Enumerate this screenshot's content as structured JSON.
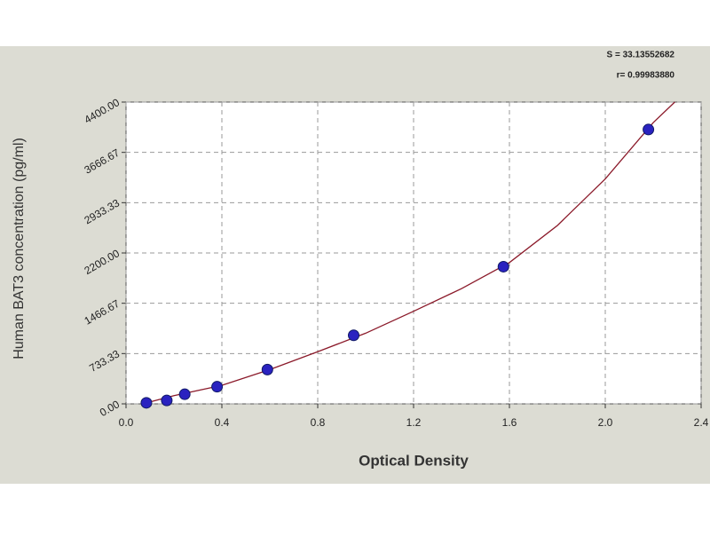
{
  "chart_data": {
    "type": "scatter",
    "x_label": "Optical Density",
    "y_label": "Human BAT3 concentration (pg/ml)",
    "annotations": [
      "S = 33.13552682",
      "r= 0.99983880"
    ],
    "x": [
      0.085,
      0.17,
      0.245,
      0.38,
      0.59,
      0.95,
      1.575,
      2.18
    ],
    "values": [
      15,
      50,
      140,
      250,
      500,
      1000,
      2000,
      4000
    ],
    "color": "#2a22c0",
    "curve": {
      "x": [
        0.08,
        0.2,
        0.4,
        0.6,
        0.8,
        1.0,
        1.2,
        1.4,
        1.6,
        1.8,
        2.0,
        2.2,
        2.29
      ],
      "values": [
        10,
        120,
        270,
        500,
        760,
        1030,
        1350,
        1680,
        2060,
        2600,
        3280,
        4100,
        4400
      ],
      "color": "#8b1a2a"
    },
    "xlim": [
      0,
      2.4
    ],
    "xticks": [
      {
        "value": 0,
        "label": "0.0"
      },
      0.4,
      0.8,
      1.2,
      1.6,
      {
        "value": 2,
        "label": "2.0"
      },
      2.4
    ],
    "ylim": [
      0,
      4400
    ],
    "yticks": [
      {
        "value": 0,
        "label": "0.00"
      },
      733.33,
      1466.67,
      {
        "value": 2200,
        "label": "2200.00"
      },
      2933.33,
      3666.67,
      {
        "value": 4400,
        "label": "4400.00"
      }
    ],
    "grid": true
  }
}
